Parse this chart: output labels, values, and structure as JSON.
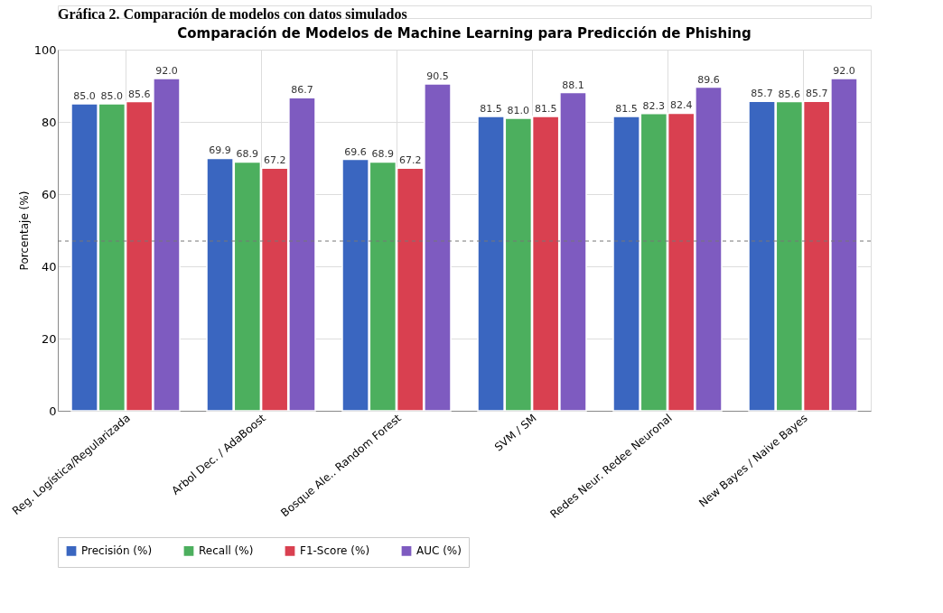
{
  "chart_data": {
    "type": "bar",
    "title": "Comparación de Modelos de Machine Learning para Predicción de Phishing",
    "ylabel": "Porcentaje (%)",
    "annotations": [
      "Gráfica 2. Comparación de modelos con datos simulados"
    ],
    "categories": [
      "Reg. Logística/Regularizada",
      "Arbol Dec. / AdaBoost",
      "Bosque Ale.. Random Forest",
      "SVM / SM",
      "Redes Neur. Redee Neuronal",
      "New Bayes / Naive Bayes"
    ],
    "series": [
      {
        "name": "Precisión (%)",
        "color": "#3a66c0",
        "values": [
          85.0,
          69.9,
          69.6,
          81.5,
          81.5,
          85.7
        ],
        "value_labels": [
          "85.0",
          "69.9",
          "69.6",
          "81.5",
          "81.5",
          "85.7"
        ]
      },
      {
        "name": "Recall (%)",
        "color": "#4caf5e",
        "values": [
          85.0,
          68.9,
          68.9,
          81.0,
          82.3,
          85.6
        ],
        "value_labels": [
          "85.0",
          "68.9",
          "68.9",
          "81.0",
          "82.3",
          "85.6"
        ]
      },
      {
        "name": "F1-Score (%)",
        "color": "#d94050",
        "values": [
          85.6,
          67.2,
          67.2,
          81.5,
          82.4,
          85.7
        ],
        "value_labels": [
          "85.6",
          "67.2",
          "67.2",
          "81.5",
          "82.4",
          "85.7"
        ]
      },
      {
        "name": "AUC (%)",
        "color": "#7e5bc0",
        "values": [
          92.0,
          86.7,
          90.5,
          88.1,
          89.6,
          92.0
        ],
        "value_labels": [
          "92.0",
          "86.7",
          "90.5",
          "88.1",
          "89.6",
          "92.0"
        ]
      }
    ],
    "ylim": [
      0,
      100
    ],
    "yticks": [
      0,
      20,
      40,
      60,
      80,
      100
    ],
    "ref_lines": [
      {
        "axis": "y",
        "value": 47,
        "line_style": "dashed",
        "color": "#777777"
      }
    ],
    "grid": true,
    "legend": "bottom"
  }
}
